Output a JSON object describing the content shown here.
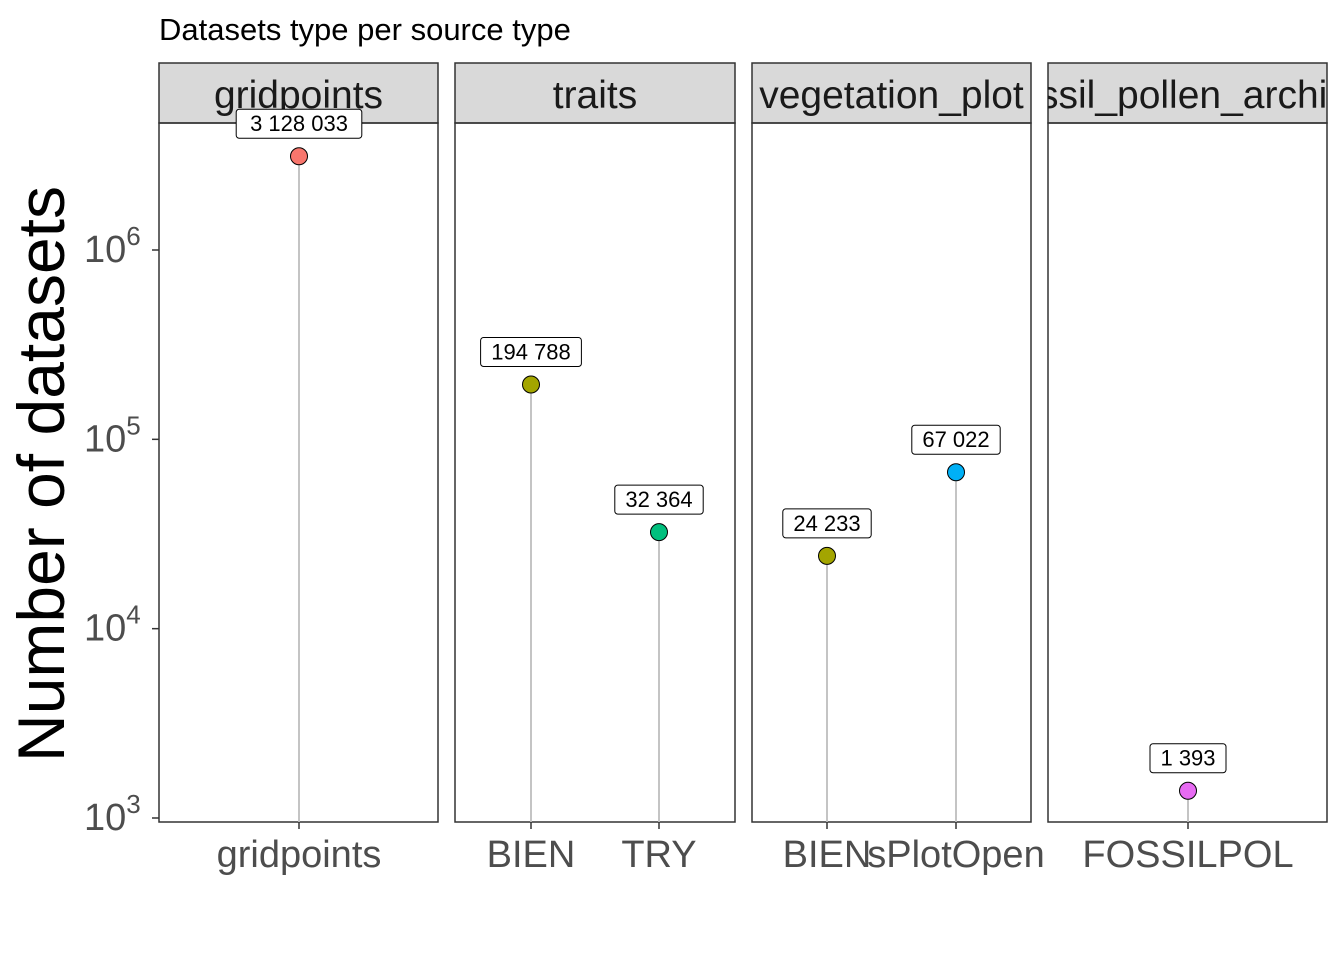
{
  "chart_data": {
    "type": "lollipop",
    "title": "Datasets type per source type",
    "ylabel": "Number of datasets",
    "xlabel": "",
    "yscale": "log10",
    "ylim": [
      900,
      4200000
    ],
    "grid": false,
    "legend": "none",
    "y_ticks": [
      {
        "value": 1000,
        "base": "10",
        "exp": "3"
      },
      {
        "value": 10000,
        "base": "10",
        "exp": "4"
      },
      {
        "value": 100000,
        "base": "10",
        "exp": "5"
      },
      {
        "value": 1000000,
        "base": "10",
        "exp": "6"
      }
    ],
    "facets": [
      {
        "label": "gridpoints",
        "points": [
          {
            "category": "gridpoints",
            "value": 3128033,
            "label": "3 128 033",
            "color": "#F8766D"
          }
        ]
      },
      {
        "label": "traits",
        "points": [
          {
            "category": "BIEN",
            "value": 194788,
            "label": "194 788",
            "color": "#A3A500"
          },
          {
            "category": "TRY",
            "value": 32364,
            "label": "32 364",
            "color": "#00BF7D"
          }
        ]
      },
      {
        "label": "vegetation_plot",
        "points": [
          {
            "category": "BIEN",
            "value": 24233,
            "label": "24 233",
            "color": "#A3A500"
          },
          {
            "category": "sPlotOpen",
            "value": 67022,
            "label": "67 022",
            "color": "#00B0F6"
          }
        ]
      },
      {
        "label": "fossil_pollen_archive",
        "points": [
          {
            "category": "FOSSILPOL",
            "value": 1393,
            "label": "1 393",
            "color": "#E76BF3"
          }
        ]
      }
    ]
  }
}
